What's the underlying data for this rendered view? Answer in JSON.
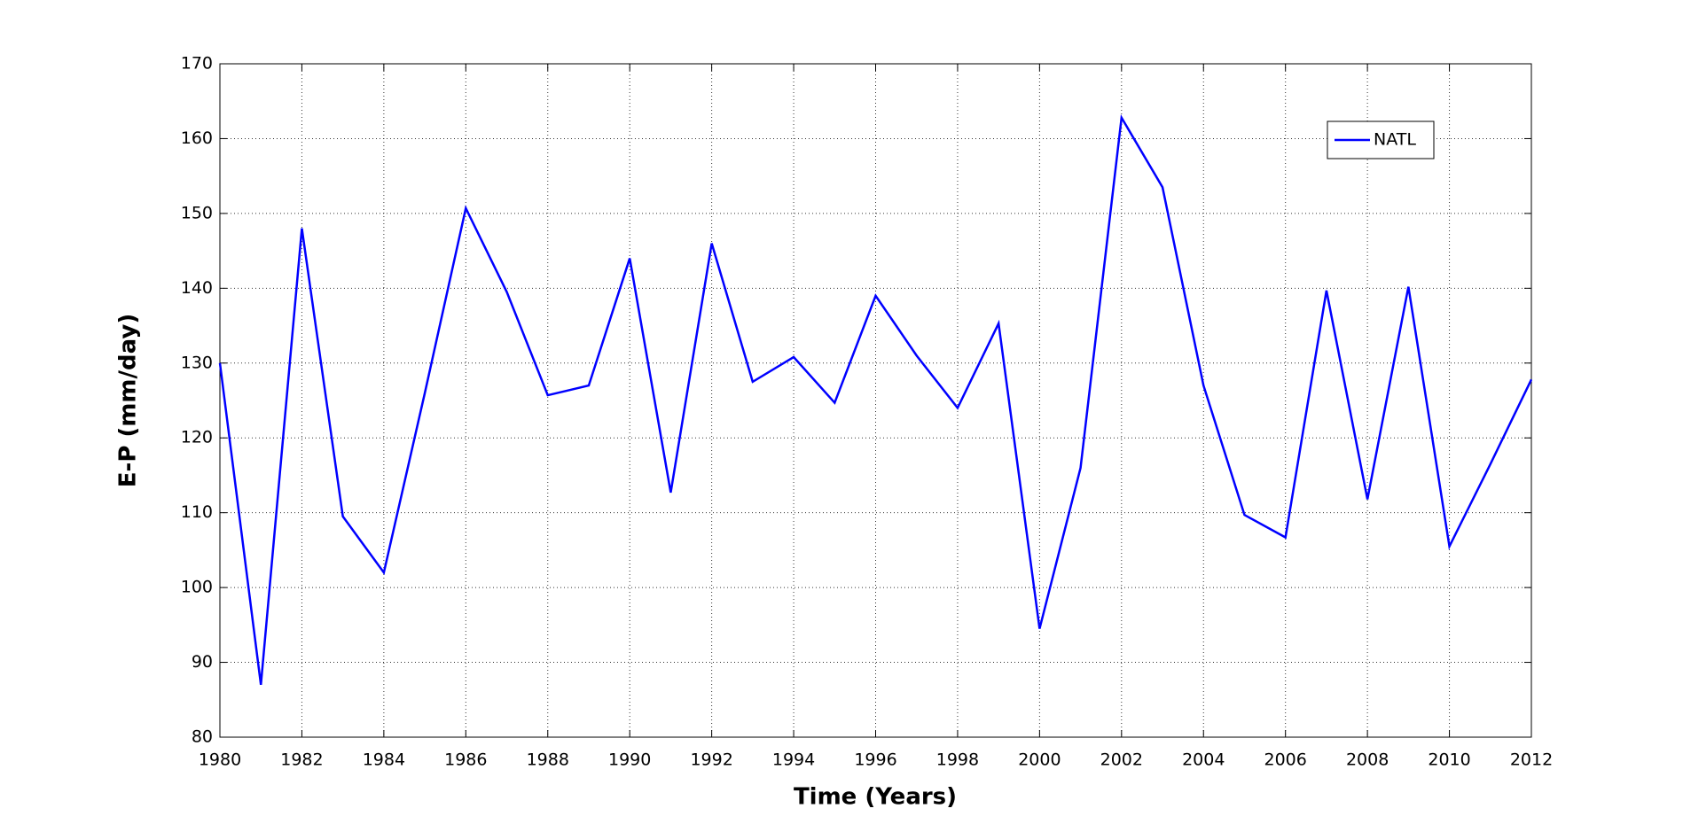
{
  "chart_data": {
    "type": "line",
    "xlabel": "Time (Years)",
    "ylabel": "E-P (mm/day)",
    "x": [
      1980,
      1981,
      1982,
      1983,
      1984,
      1985,
      1986,
      1987,
      1988,
      1989,
      1990,
      1991,
      1992,
      1993,
      1994,
      1995,
      1996,
      1997,
      1998,
      1999,
      2000,
      2001,
      2002,
      2003,
      2004,
      2005,
      2006,
      2007,
      2008,
      2009,
      2010,
      2011,
      2012
    ],
    "series": [
      {
        "name": "NATL",
        "color": "#0000ff",
        "values": [
          130,
          87,
          148,
          109.5,
          102,
          126,
          150.7,
          139.5,
          125.7,
          127,
          144,
          112.7,
          146,
          127.5,
          130.8,
          124.7,
          139,
          131,
          124,
          135.3,
          94.5,
          116,
          162.8,
          153.5,
          127,
          109.7,
          106.7,
          139.7,
          111.8,
          140.2,
          105.5,
          116.5,
          127.8
        ]
      }
    ],
    "xlim": [
      1980,
      2012
    ],
    "xticks": [
      1980,
      1982,
      1984,
      1986,
      1988,
      1990,
      1992,
      1994,
      1996,
      1998,
      2000,
      2002,
      2004,
      2006,
      2008,
      2010,
      2012
    ],
    "ylim": [
      80,
      170
    ],
    "yticks": [
      80,
      90,
      100,
      110,
      120,
      130,
      140,
      150,
      160,
      170
    ],
    "grid": true,
    "legend": "upper-right"
  }
}
